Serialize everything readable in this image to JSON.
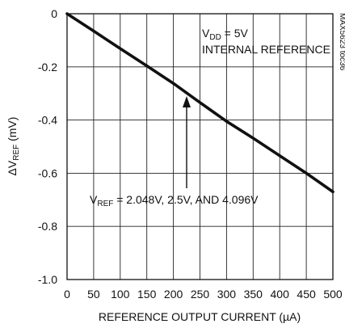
{
  "chart_data": {
    "type": "line",
    "x": [
      0,
      50,
      100,
      150,
      200,
      250,
      300,
      350,
      400,
      450,
      500
    ],
    "series": [
      {
        "values": [
          0,
          -0.065,
          -0.131,
          -0.196,
          -0.262,
          -0.334,
          -0.405,
          -0.468,
          -0.534,
          -0.6,
          -0.67
        ]
      }
    ],
    "xlabel": "REFERENCE OUTPUT CURRENT (µA)",
    "ylabel": {
      "base": "ΔV",
      "sub": "REF",
      "unit": " (mV)"
    },
    "xlim": [
      0,
      500
    ],
    "ylim": [
      -1.0,
      0
    ],
    "xticks": [
      "0",
      "50",
      "100",
      "150",
      "200",
      "250",
      "300",
      "350",
      "400",
      "450",
      "500"
    ],
    "yticks": [
      "0",
      "-0.2",
      "-0.4",
      "-0.6",
      "-0.8",
      "-1.0"
    ],
    "grid": true,
    "annotations": {
      "condition": {
        "base": "V",
        "sub": "DD",
        "rest": " = 5V"
      },
      "condition_2": "INTERNAL REFERENCE",
      "arrow_label": {
        "base": "V",
        "sub": "REF",
        "rest": " = 2.048V, 2.5V, AND 4.096V"
      },
      "part_id": "MAX5623 toc36"
    }
  }
}
